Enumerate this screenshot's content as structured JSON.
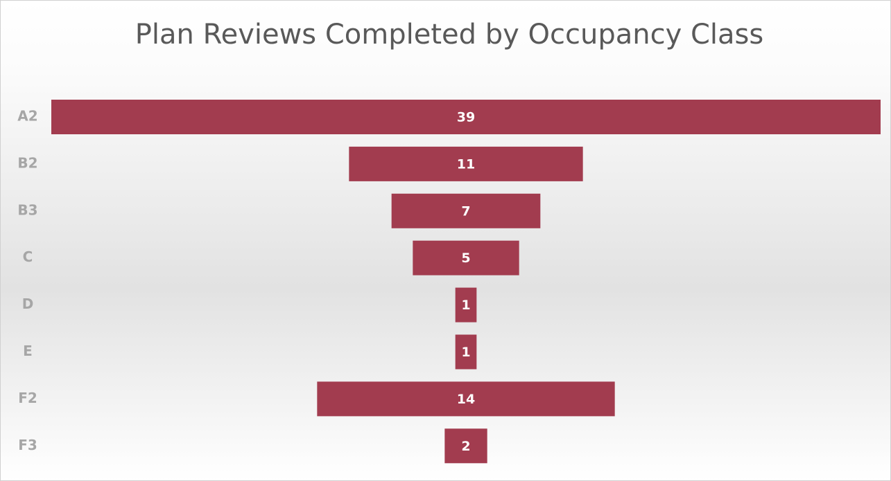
{
  "chart_data": {
    "type": "funnel",
    "title": "Plan Reviews Completed by Occupancy Class",
    "categories": [
      "A2",
      "B2",
      "B3",
      "C",
      "D",
      "E",
      "F2",
      "F3"
    ],
    "values": [
      39,
      11,
      7,
      5,
      1,
      1,
      14,
      2
    ],
    "color": "#a23c4f"
  }
}
